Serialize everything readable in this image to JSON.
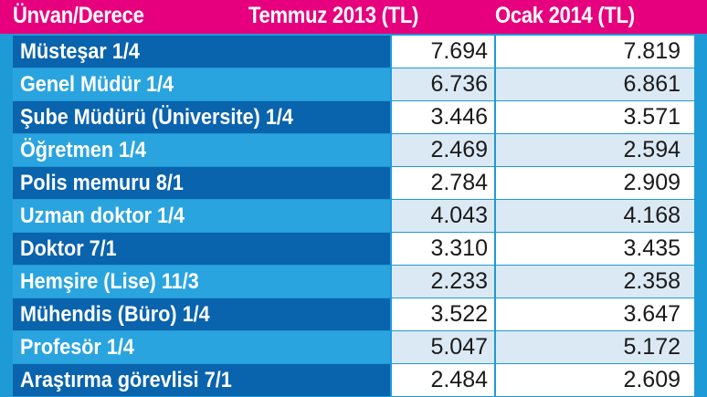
{
  "header": {
    "title": "Ünvan/Derece",
    "col1": "Temmuz 2013 (TL)",
    "col2": "Ocak 2014 (TL)"
  },
  "rows": [
    {
      "label": "Müsteşar 1/4",
      "jul2013": "7.694",
      "jan2014": "7.819"
    },
    {
      "label": "Genel Müdür 1/4",
      "jul2013": "6.736",
      "jan2014": "6.861"
    },
    {
      "label": "Şube Müdürü (Üniversite) 1/4",
      "jul2013": "3.446",
      "jan2014": "3.571"
    },
    {
      "label": "Öğretmen 1/4",
      "jul2013": "2.469",
      "jan2014": "2.594"
    },
    {
      "label": "Polis memuru 8/1",
      "jul2013": "2.784",
      "jan2014": "2.909"
    },
    {
      "label": "Uzman doktor 1/4",
      "jul2013": "4.043",
      "jan2014": "4.168"
    },
    {
      "label": "Doktor 7/1",
      "jul2013": "3.310",
      "jan2014": "3.435"
    },
    {
      "label": "Hemşire (Lise) 11/3",
      "jul2013": "2.233",
      "jan2014": "2.358"
    },
    {
      "label": "Mühendis (Büro) 1/4",
      "jul2013": "3.522",
      "jan2014": "3.647"
    },
    {
      "label": "Profesör 1/4",
      "jul2013": "5.047",
      "jan2014": "5.172"
    },
    {
      "label": "Araştırma görevlisi 7/1",
      "jul2013": "2.484",
      "jan2014": "2.609"
    }
  ],
  "colors": {
    "header_bg": "#e6007e",
    "frame_bg": "#1e9ad6",
    "label_dark": "#0a63ad",
    "label_light": "#2aa4df",
    "value_dark_row": "#ffffff",
    "value_light_row": "#dbe9f5"
  }
}
